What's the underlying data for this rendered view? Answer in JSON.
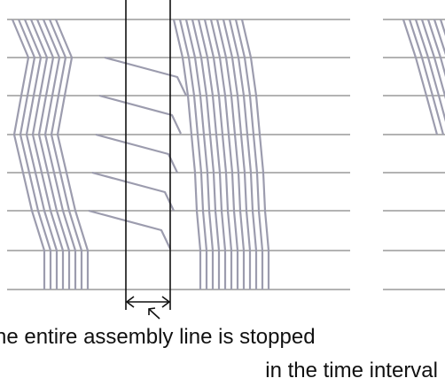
{
  "caption": {
    "line1": "he entire assembly line is stopped",
    "line2": "in the time interval"
  },
  "colors": {
    "trace": "#9c9cae",
    "station_line": "#9a9a9a",
    "marker_line": "#111111",
    "background": "#ffffff"
  }
}
